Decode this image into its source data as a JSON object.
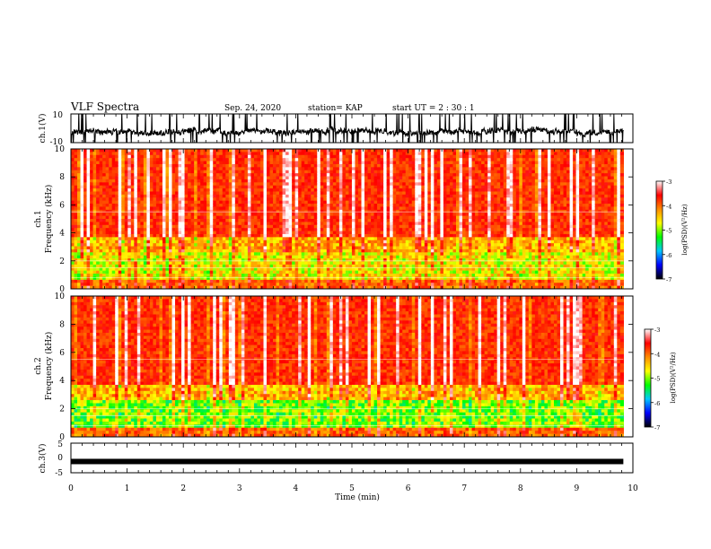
{
  "header": {
    "title": "VLF Spectra",
    "date": "Sep. 24, 2020",
    "station": "station= KAP",
    "start": "start  UT =  2 : 30 : 1"
  },
  "chart_data": [
    {
      "type": "line",
      "id": "ch1-waveform",
      "ylabel": "ch.1(V)",
      "ylim": [
        -10,
        10
      ],
      "ytick_labels": [
        "10",
        "-10"
      ],
      "xlim": [
        0,
        10
      ],
      "data_extent_x": [
        0,
        9.83
      ]
    },
    {
      "type": "heatmap",
      "id": "ch1-spectrogram",
      "ylabel": "ch.1\nFrequency  (kHz)",
      "ylabel_lines": [
        "ch.1",
        "Frequency  (kHz)"
      ],
      "ylim": [
        0,
        10
      ],
      "ytick_labels": [
        "0",
        "2",
        "4",
        "6",
        "8",
        "10"
      ],
      "xlim": [
        0,
        10
      ],
      "data_extent_x": [
        0,
        9.83
      ],
      "colorbar": {
        "label": "log(PSD)(V²/Hz)",
        "range": [
          -7,
          -3
        ],
        "tick_labels": [
          "-3",
          "-4",
          "-5",
          "-6",
          "-7"
        ],
        "colors": [
          "#000000",
          "#0000ff",
          "#00c8ff",
          "#00ff00",
          "#ffff00",
          "#ff8c00",
          "#ff0000",
          "#ffffff"
        ]
      }
    },
    {
      "type": "heatmap",
      "id": "ch2-spectrogram",
      "ylabel": "ch.2\nFrequency  (kHz)",
      "ylabel_lines": [
        "ch.2",
        "Frequency  (kHz)"
      ],
      "ylim": [
        0,
        10
      ],
      "ytick_labels": [
        "0",
        "2",
        "4",
        "6",
        "8",
        "10"
      ],
      "xlim": [
        0,
        10
      ],
      "data_extent_x": [
        0,
        9.83
      ],
      "colorbar": {
        "label": "log(PSD)(V²/Hz)",
        "range": [
          -7,
          -3
        ],
        "tick_labels": [
          "-3",
          "-4",
          "-5",
          "-6",
          "-7"
        ],
        "colors": [
          "#000000",
          "#0000ff",
          "#00c8ff",
          "#00ff00",
          "#ffff00",
          "#ff8c00",
          "#ff0000",
          "#ffffff"
        ]
      }
    },
    {
      "type": "line",
      "id": "ch3-waveform",
      "ylabel": "ch.3(V)",
      "ylim": [
        -5,
        5
      ],
      "ytick_labels": [
        "5",
        "0",
        "-5"
      ],
      "baseline_value": -1.2,
      "xlim": [
        0,
        10
      ],
      "data_extent_x": [
        0,
        9.83
      ]
    }
  ],
  "xaxis": {
    "label": "Time  (min)",
    "range": [
      0,
      10
    ],
    "tick_labels": [
      "0",
      "1",
      "2",
      "3",
      "4",
      "5",
      "6",
      "7",
      "8",
      "9",
      "10"
    ]
  }
}
